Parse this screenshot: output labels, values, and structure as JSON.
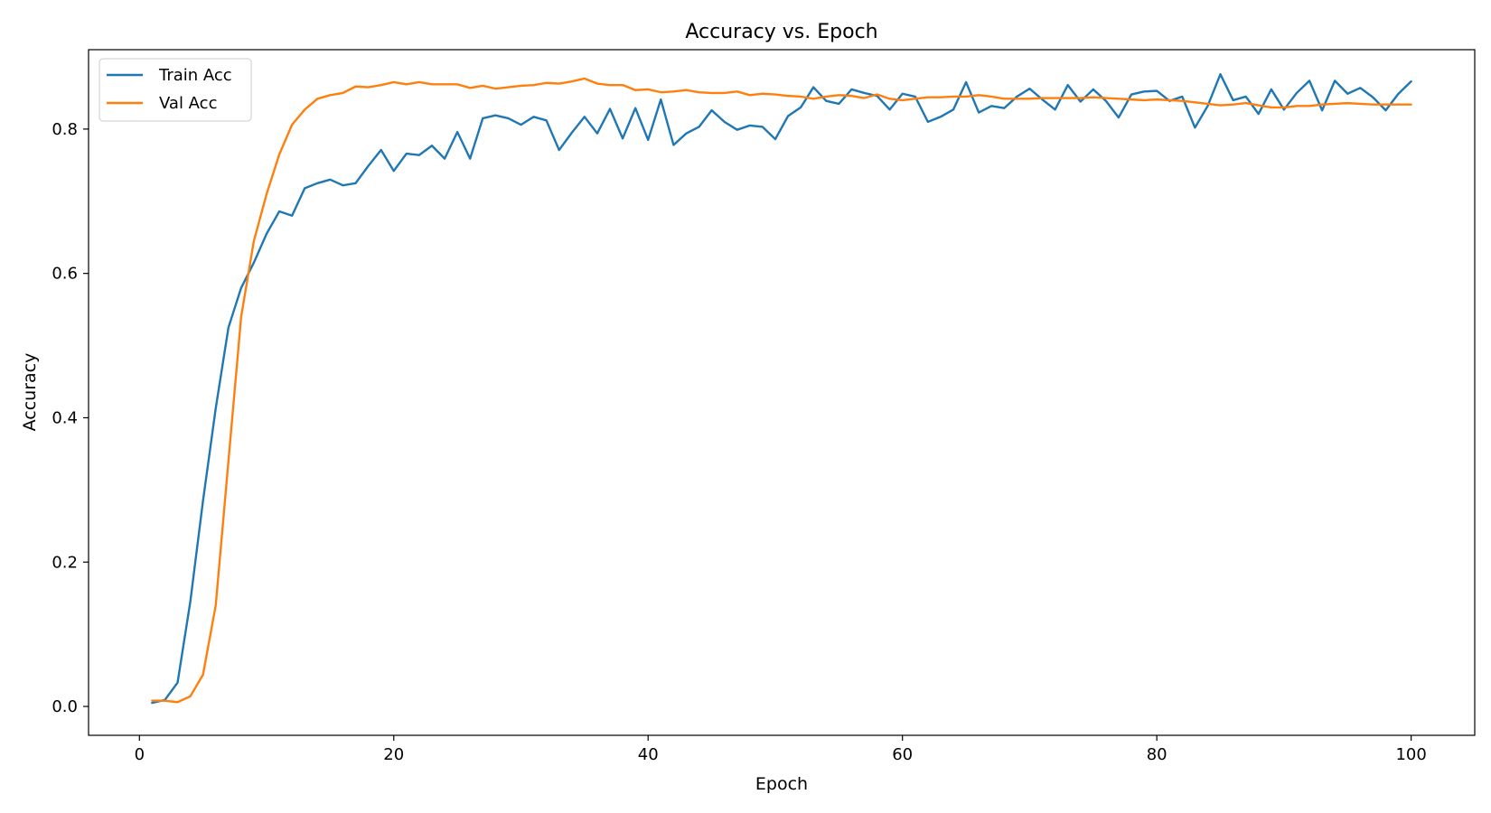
{
  "chart_data": {
    "type": "line",
    "title": "Accuracy vs. Epoch",
    "xlabel": "Epoch",
    "ylabel": "Accuracy",
    "xlim": [
      -4,
      105
    ],
    "ylim": [
      -0.04,
      0.91
    ],
    "xticks": [
      0,
      20,
      40,
      60,
      80,
      100
    ],
    "yticks": [
      0.0,
      0.2,
      0.4,
      0.6,
      0.8
    ],
    "ytick_format": 1,
    "grid": false,
    "legend": "top-left",
    "series": [
      {
        "name": "Train Acc",
        "color": "#1f77b4",
        "x": [
          1,
          2,
          3,
          4,
          5,
          6,
          7,
          8,
          9,
          10,
          11,
          12,
          13,
          14,
          15,
          16,
          17,
          18,
          19,
          20,
          21,
          22,
          23,
          24,
          25,
          26,
          27,
          28,
          29,
          30,
          31,
          32,
          33,
          34,
          35,
          36,
          37,
          38,
          39,
          40,
          41,
          42,
          43,
          44,
          45,
          46,
          47,
          48,
          49,
          50,
          51,
          52,
          53,
          54,
          55,
          56,
          57,
          58,
          59,
          60,
          61,
          62,
          63,
          64,
          65,
          66,
          67,
          68,
          69,
          70,
          71,
          72,
          73,
          74,
          75,
          76,
          77,
          78,
          79,
          80,
          81,
          82,
          83,
          84,
          85,
          86,
          87,
          88,
          89,
          90,
          91,
          92,
          93,
          94,
          95,
          96,
          97,
          98,
          99,
          100
        ],
        "values": [
          0.005,
          0.009,
          0.033,
          0.145,
          0.285,
          0.413,
          0.525,
          0.58,
          0.615,
          0.655,
          0.686,
          0.68,
          0.718,
          0.725,
          0.73,
          0.722,
          0.725,
          0.749,
          0.771,
          0.742,
          0.766,
          0.764,
          0.777,
          0.759,
          0.796,
          0.759,
          0.815,
          0.819,
          0.815,
          0.806,
          0.817,
          0.812,
          0.771,
          0.795,
          0.817,
          0.794,
          0.828,
          0.787,
          0.829,
          0.785,
          0.841,
          0.778,
          0.794,
          0.803,
          0.826,
          0.81,
          0.799,
          0.805,
          0.803,
          0.786,
          0.818,
          0.83,
          0.858,
          0.839,
          0.835,
          0.855,
          0.85,
          0.846,
          0.827,
          0.849,
          0.845,
          0.81,
          0.817,
          0.827,
          0.865,
          0.823,
          0.832,
          0.829,
          0.845,
          0.856,
          0.841,
          0.827,
          0.861,
          0.838,
          0.855,
          0.839,
          0.816,
          0.848,
          0.852,
          0.853,
          0.839,
          0.845,
          0.802,
          0.832,
          0.876,
          0.84,
          0.845,
          0.821,
          0.855,
          0.827,
          0.85,
          0.867,
          0.826,
          0.867,
          0.849,
          0.857,
          0.844,
          0.826,
          0.849,
          0.866
        ]
      },
      {
        "name": "Val Acc",
        "color": "#ff7f0e",
        "x": [
          1,
          2,
          3,
          4,
          5,
          6,
          7,
          8,
          9,
          10,
          11,
          12,
          13,
          14,
          15,
          16,
          17,
          18,
          19,
          20,
          21,
          22,
          23,
          24,
          25,
          26,
          27,
          28,
          29,
          30,
          31,
          32,
          33,
          34,
          35,
          36,
          37,
          38,
          39,
          40,
          41,
          42,
          43,
          44,
          45,
          46,
          47,
          48,
          49,
          50,
          51,
          52,
          53,
          54,
          55,
          56,
          57,
          58,
          59,
          60,
          61,
          62,
          63,
          64,
          65,
          66,
          67,
          68,
          69,
          70,
          71,
          72,
          73,
          74,
          75,
          76,
          77,
          78,
          79,
          80,
          81,
          82,
          83,
          84,
          85,
          86,
          87,
          88,
          89,
          90,
          91,
          92,
          93,
          94,
          95,
          96,
          97,
          98,
          99,
          100
        ],
        "values": [
          0.008,
          0.008,
          0.006,
          0.014,
          0.044,
          0.14,
          0.34,
          0.54,
          0.645,
          0.71,
          0.765,
          0.806,
          0.827,
          0.842,
          0.847,
          0.85,
          0.859,
          0.858,
          0.861,
          0.865,
          0.862,
          0.865,
          0.862,
          0.862,
          0.862,
          0.857,
          0.86,
          0.856,
          0.858,
          0.86,
          0.861,
          0.864,
          0.863,
          0.866,
          0.87,
          0.863,
          0.861,
          0.861,
          0.854,
          0.855,
          0.851,
          0.852,
          0.854,
          0.851,
          0.85,
          0.85,
          0.852,
          0.847,
          0.849,
          0.848,
          0.846,
          0.845,
          0.842,
          0.845,
          0.847,
          0.846,
          0.843,
          0.848,
          0.842,
          0.84,
          0.842,
          0.844,
          0.844,
          0.845,
          0.845,
          0.847,
          0.845,
          0.842,
          0.842,
          0.842,
          0.843,
          0.843,
          0.843,
          0.843,
          0.844,
          0.843,
          0.842,
          0.841,
          0.84,
          0.841,
          0.84,
          0.839,
          0.837,
          0.835,
          0.833,
          0.834,
          0.836,
          0.833,
          0.83,
          0.83,
          0.832,
          0.832,
          0.834,
          0.835,
          0.836,
          0.835,
          0.834,
          0.834,
          0.834,
          0.834
        ]
      }
    ]
  }
}
